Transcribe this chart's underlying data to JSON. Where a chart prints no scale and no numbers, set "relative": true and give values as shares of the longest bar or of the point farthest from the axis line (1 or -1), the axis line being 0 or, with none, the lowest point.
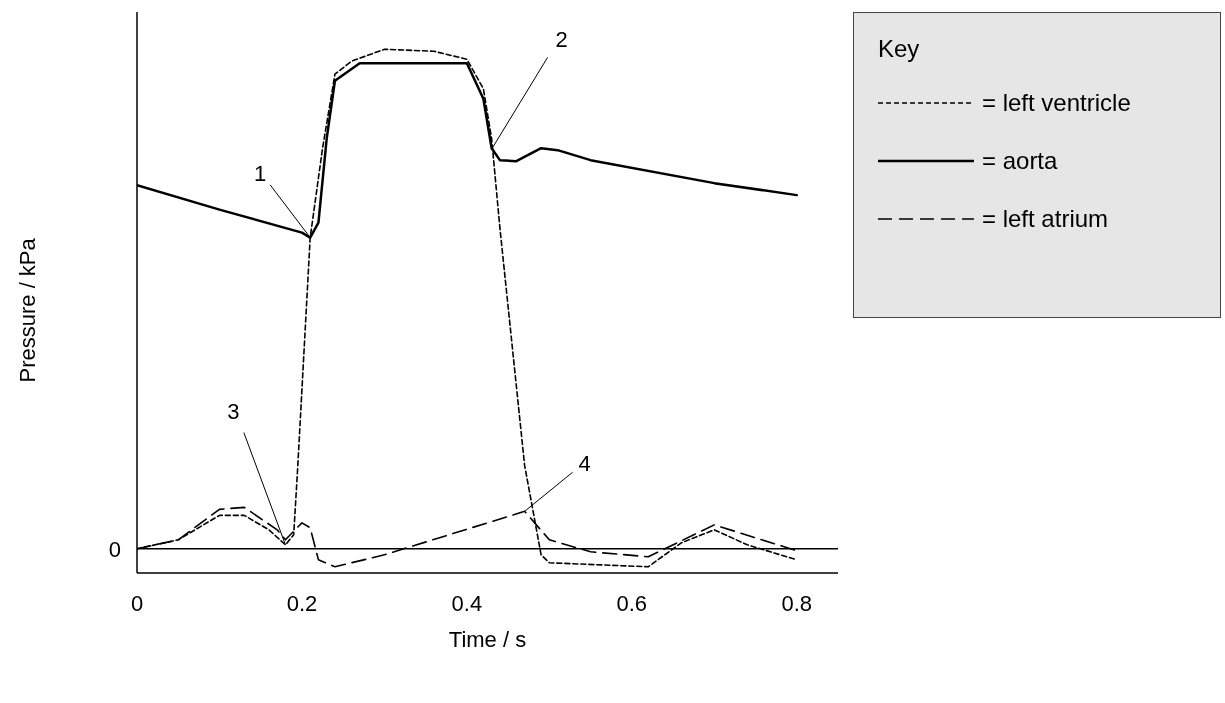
{
  "chart_data": {
    "type": "line",
    "relative": true,
    "xlabel": "Time / s",
    "ylabel": "Pressure / kPa",
    "legend_title": "Key",
    "legend": "top right",
    "grid": false,
    "marker": "none",
    "xlim": [
      0,
      0.85
    ],
    "xticks": [
      0,
      0.2,
      0.4,
      0.6,
      0.8
    ],
    "ref_lines": [
      {
        "axis": "y",
        "value": 0,
        "label": "0",
        "color": "#000000"
      }
    ],
    "annotations": [
      {
        "text": "1",
        "x": 0.21,
        "y": 0.623
      },
      {
        "text": "2",
        "x": 0.43,
        "y": 0.8
      },
      {
        "text": "3",
        "x": 0.18,
        "y": 0.008
      },
      {
        "text": "4",
        "x": 0.47,
        "y": 0.075
      }
    ],
    "series": [
      {
        "name": "= left ventricle",
        "color": "#000000",
        "line_style": "dotted",
        "x": [
          0,
          0.05,
          0.1,
          0.13,
          0.16,
          0.18,
          0.19,
          0.195,
          0.21,
          0.225,
          0.24,
          0.26,
          0.3,
          0.36,
          0.4,
          0.42,
          0.43,
          0.44,
          0.47,
          0.49,
          0.5,
          0.62,
          0.66,
          0.7,
          0.74,
          0.8
        ],
        "values": [
          0,
          0.018,
          0.067,
          0.067,
          0.038,
          0.008,
          0.028,
          0.167,
          0.623,
          0.802,
          0.95,
          0.976,
          1.0,
          0.996,
          0.98,
          0.921,
          0.821,
          0.643,
          0.167,
          -0.012,
          -0.028,
          -0.036,
          0.012,
          0.038,
          0.008,
          -0.022
        ]
      },
      {
        "name": "= aorta",
        "color": "#000000",
        "line_style": "solid",
        "x": [
          0,
          0.1,
          0.2,
          0.21,
          0.22,
          0.23,
          0.24,
          0.27,
          0.4,
          0.42,
          0.43,
          0.44,
          0.46,
          0.49,
          0.51,
          0.55,
          0.7,
          0.8
        ],
        "values": [
          0.728,
          0.679,
          0.633,
          0.623,
          0.653,
          0.821,
          0.937,
          0.972,
          0.972,
          0.901,
          0.802,
          0.778,
          0.776,
          0.802,
          0.798,
          0.778,
          0.732,
          0.708
        ]
      },
      {
        "name": "= left atrium",
        "color": "#000000",
        "line_style": "dashed",
        "x": [
          0,
          0.05,
          0.1,
          0.13,
          0.17,
          0.18,
          0.2,
          0.21,
          0.22,
          0.24,
          0.3,
          0.47,
          0.5,
          0.55,
          0.62,
          0.7,
          0.8
        ],
        "values": [
          0,
          0.018,
          0.079,
          0.083,
          0.038,
          0.018,
          0.052,
          0.042,
          -0.022,
          -0.036,
          -0.012,
          0.075,
          0.018,
          -0.006,
          -0.016,
          0.048,
          -0.004
        ]
      }
    ]
  }
}
